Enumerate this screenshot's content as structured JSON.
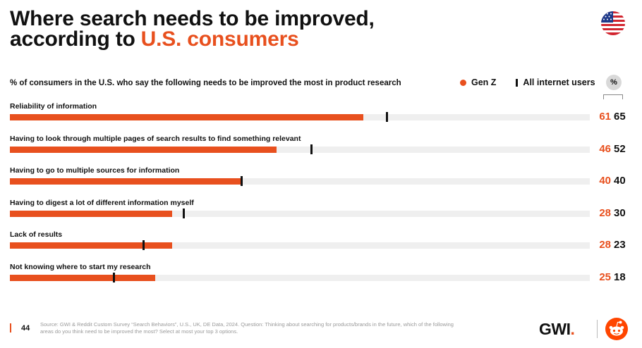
{
  "header": {
    "title_line1": "Where search needs to be improved,",
    "title_line2_prefix": "according to",
    "title_line2_accent": "U.S. consumers"
  },
  "flag_icon": "us-flag-icon",
  "subtitle": "% of consumers in the U.S. who say the following needs to be improved the most in product research",
  "legend": {
    "genz_label": "Gen Z",
    "all_label": "All internet users",
    "pct_badge": "%"
  },
  "colors": {
    "accent": "#e8501e",
    "track": "#efefef",
    "marker": "#111111"
  },
  "chart_data": {
    "type": "bar",
    "orientation": "horizontal",
    "title": "Where search needs to be improved, according to U.S. consumers",
    "subtitle": "% of consumers in the U.S. who say the following needs to be improved the most in product research",
    "xlim": [
      0,
      100
    ],
    "categories": [
      "Reliability of information",
      "Having to look through multiple pages of search results to find something relevant",
      "Having to go to multiple sources for information",
      "Having to digest a lot of different information myself",
      "Lack of results",
      "Not knowing where to start my research"
    ],
    "series": [
      {
        "name": "Gen Z",
        "values": [
          61,
          46,
          40,
          28,
          28,
          25
        ]
      },
      {
        "name": "All internet users",
        "values": [
          65,
          52,
          40,
          30,
          23,
          18
        ]
      }
    ],
    "legend_position": "top-right",
    "grid": false
  },
  "footer": {
    "page_number": "44",
    "source": "Source: GWI & Reddit Custom Survey “Search Behaviors”, U.S., UK, DE Data, 2024. Question: Thinking about searching for products/brands in the future, which of the following areas do you think need to be improved the most? Select at most your top 3 options.",
    "gwi_logo_text": "GWI",
    "gwi_logo_dot": ".",
    "reddit_icon": "reddit-logo-icon"
  }
}
